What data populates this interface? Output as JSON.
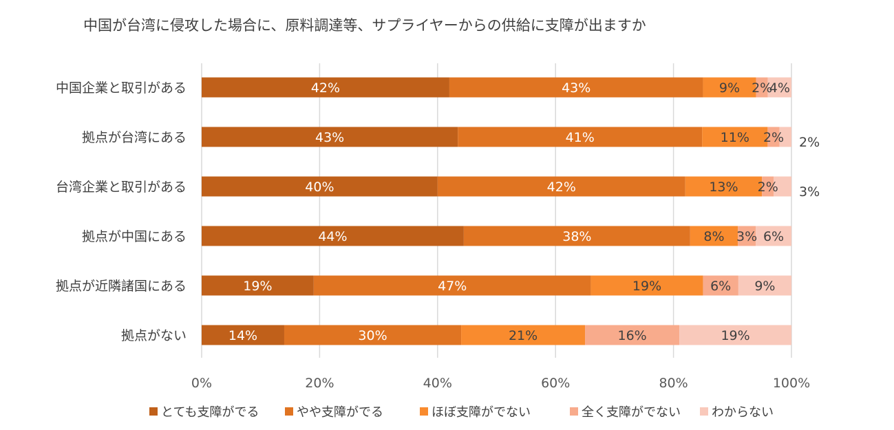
{
  "chart_data": {
    "type": "bar",
    "orientation": "horizontal",
    "stacked": "percent",
    "title": "中国が台湾に侵攻した場合に、原料調達等、サプライヤーからの供給に支障が出ますか",
    "categories": [
      "中国企業と取引がある",
      "拠点が台湾にある",
      "台湾企業と取引がある",
      "拠点が中国にある",
      "拠点が近隣諸国にある",
      "拠点がない"
    ],
    "series": [
      {
        "name": "とても支障がでる",
        "color": "#c0601a",
        "values": [
          42,
          43,
          40,
          44,
          19,
          14
        ]
      },
      {
        "name": "やや支障がでる",
        "color": "#e07422",
        "values": [
          43,
          41,
          42,
          38,
          47,
          30
        ]
      },
      {
        "name": "ほぼ支障がでない",
        "color": "#f98b2e",
        "values": [
          9,
          11,
          13,
          8,
          19,
          21
        ]
      },
      {
        "name": "全く支障がでない",
        "color": "#f8ab8c",
        "values": [
          2,
          2,
          2,
          3,
          6,
          16
        ]
      },
      {
        "name": "わからない",
        "color": "#f9c9bb",
        "values": [
          4,
          2,
          3,
          6,
          9,
          19
        ]
      }
    ],
    "data_labels": [
      [
        "42%",
        "43%",
        "9%",
        "2%",
        "4%"
      ],
      [
        "43%",
        "41%",
        "11%",
        "2%",
        "2%"
      ],
      [
        "40%",
        "42%",
        "13%",
        "2%",
        "3%"
      ],
      [
        "44%",
        "38%",
        "8%",
        "3%",
        "6%"
      ],
      [
        "19%",
        "47%",
        "19%",
        "6%",
        "9%"
      ],
      [
        "14%",
        "30%",
        "21%",
        "16%",
        "19%"
      ]
    ],
    "x_ticks": [
      "0%",
      "20%",
      "40%",
      "60%",
      "80%",
      "100%"
    ],
    "xlim": [
      0,
      100
    ],
    "grid": true,
    "legend_position": "bottom"
  }
}
